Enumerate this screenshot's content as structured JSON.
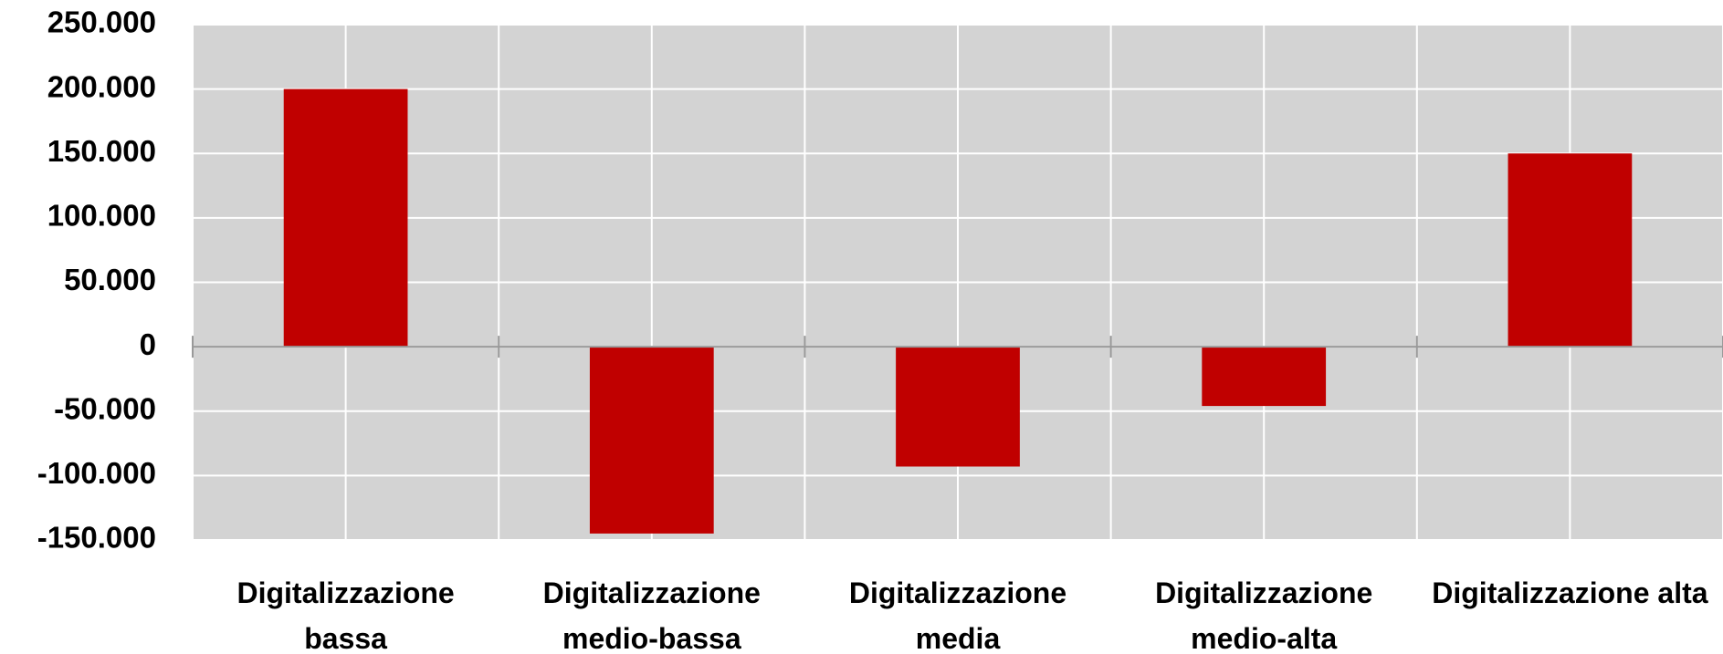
{
  "chart_data": {
    "type": "bar",
    "categories": [
      "Digitalizzazione bassa",
      "Digitalizzazione medio-bassa",
      "Digitalizzazione media",
      "Digitalizzazione medio-alta",
      "Digitalizzazione alta"
    ],
    "values": [
      200000,
      -145000,
      -93000,
      -46000,
      150000
    ],
    "color": "#c00000",
    "ylim": [
      -150000,
      250000
    ],
    "yticks": [
      {
        "value": -150000,
        "label": "-150.000"
      },
      {
        "value": -100000,
        "label": "-100.000"
      },
      {
        "value": -50000,
        "label": "-50.000"
      },
      0,
      {
        "value": 50000,
        "label": "50.000"
      },
      {
        "value": 100000,
        "label": "100.000"
      },
      {
        "value": 150000,
        "label": "150.000"
      },
      {
        "value": 200000,
        "label": "200.000"
      },
      {
        "value": 250000,
        "label": "250.000"
      }
    ],
    "grid": true
  }
}
